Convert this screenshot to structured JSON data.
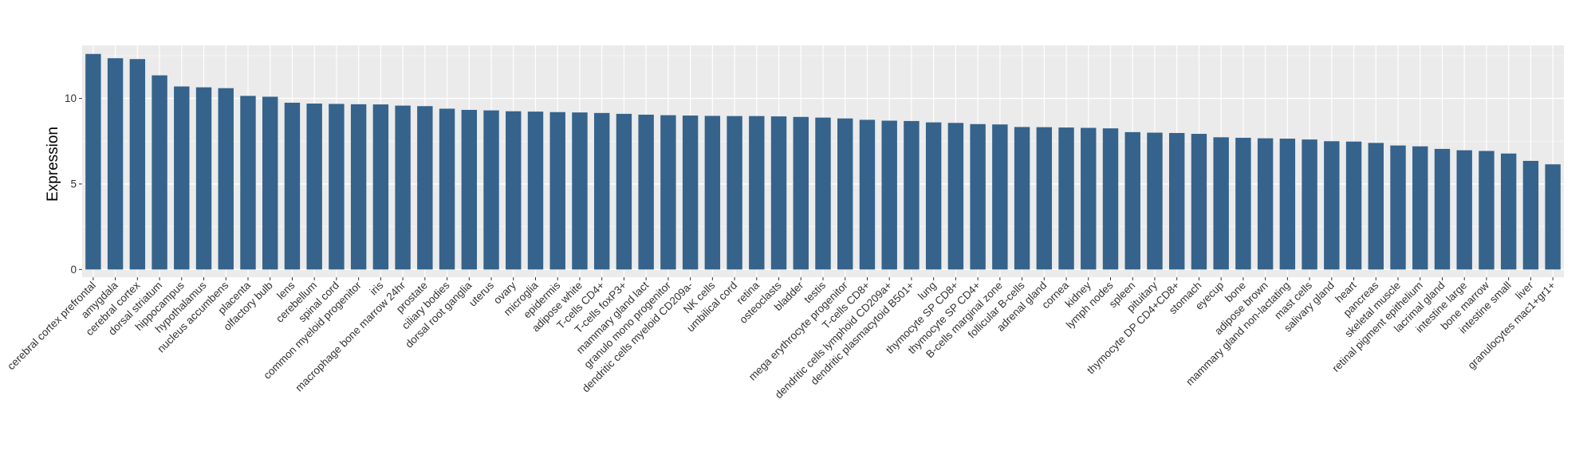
{
  "chart_data": {
    "type": "bar",
    "title": "",
    "xlabel": "",
    "ylabel": "Expression",
    "ylim": [
      -0.45,
      13.1
    ],
    "yticks": [
      0,
      5,
      10
    ],
    "ytick_labels": [
      "0",
      "5",
      "10"
    ],
    "grid": true,
    "legend": "none",
    "colors": {
      "bar": "#35638c",
      "panel": "#ebebeb",
      "grid_major": "#ffffff",
      "grid_minor": "#f4f4f4",
      "tick": "#333333"
    },
    "categories": [
      "cerebral cortex prefrontal",
      "amygdala",
      "cerebral cortex",
      "dorsal striatum",
      "hippocampus",
      "hypothalamus",
      "nucleus accumbens",
      "placenta",
      "olfactory bulb",
      "lens",
      "cerebellum",
      "spinal cord",
      "common myeloid progenitor",
      "iris",
      "macrophage bone marrow 24hr",
      "prostate",
      "ciliary bodies",
      "dorsal root ganglia",
      "uterus",
      "ovary",
      "microglia",
      "epidermis",
      "adipose white",
      "T-cells CD4+",
      "T-cells foxP3+",
      "mammary gland lact",
      "granulo mono progenitor",
      "dendritic cells myeloid CD209a-",
      "NK cells",
      "umbilical cord",
      "retina",
      "osteoclasts",
      "bladder",
      "testis",
      "mega erythrocyte progenitor",
      "T-cells CD8+",
      "dendritic cells lymphoid CD209a+",
      "dendritic plasmacytoid B501+",
      "lung",
      "thymocyte SP CD8+",
      "thymocyte SP CD4+",
      "B-cells marginal zone",
      "follicular B-cells",
      "adrenal gland",
      "cornea",
      "kidney",
      "lymph nodes",
      "spleen",
      "pituitary",
      "thymocyte DP CD4+CD8+",
      "stomach",
      "eyecup",
      "bone",
      "adipose brown",
      "mammary gland non-lactating",
      "mast cells",
      "salivary gland",
      "heart",
      "pancreas",
      "skeletal muscle",
      "retinal pigment epithelium",
      "lacrimal gland",
      "intestine large",
      "bone marrow",
      "intestine small",
      "liver",
      "granulocytes mac1+gr1+"
    ],
    "values": [
      12.6,
      12.35,
      12.3,
      11.35,
      10.7,
      10.65,
      10.6,
      10.15,
      10.1,
      9.75,
      9.7,
      9.68,
      9.66,
      9.65,
      9.58,
      9.55,
      9.4,
      9.33,
      9.3,
      9.25,
      9.23,
      9.2,
      9.18,
      9.15,
      9.1,
      9.05,
      9.02,
      9.0,
      8.98,
      8.97,
      8.97,
      8.95,
      8.92,
      8.88,
      8.83,
      8.75,
      8.7,
      8.68,
      8.6,
      8.57,
      8.5,
      8.48,
      8.33,
      8.32,
      8.3,
      8.28,
      8.25,
      8.03,
      8.0,
      7.98,
      7.93,
      7.73,
      7.7,
      7.67,
      7.65,
      7.6,
      7.5,
      7.48,
      7.4,
      7.25,
      7.2,
      7.05,
      6.97,
      6.93,
      6.78,
      6.35,
      6.15
    ]
  }
}
